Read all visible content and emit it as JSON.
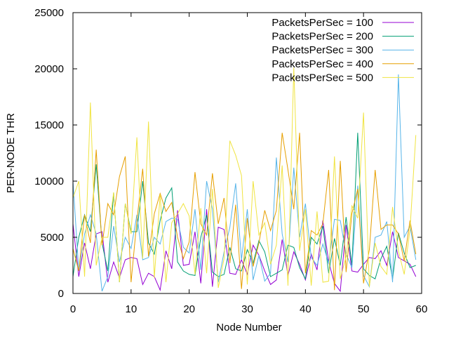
{
  "chart_data": {
    "type": "line",
    "xlabel": "Node Number",
    "ylabel": "PER-NODE THR",
    "xlim": [
      0,
      60
    ],
    "ylim": [
      0,
      25000
    ],
    "xticks": [
      0,
      10,
      20,
      30,
      40,
      50,
      60
    ],
    "yticks": [
      0,
      5000,
      10000,
      15000,
      20000,
      25000
    ],
    "grid": false,
    "legend_position": "top-right",
    "x": [
      0,
      1,
      2,
      3,
      4,
      5,
      6,
      7,
      8,
      9,
      10,
      11,
      12,
      13,
      14,
      15,
      16,
      17,
      18,
      19,
      20,
      21,
      22,
      23,
      24,
      25,
      26,
      27,
      28,
      29,
      30,
      31,
      32,
      33,
      34,
      35,
      36,
      37,
      38,
      39,
      40,
      41,
      42,
      43,
      44,
      45,
      46,
      47,
      48,
      49,
      50,
      51,
      52,
      53,
      54,
      55,
      56,
      57,
      58,
      59
    ],
    "series": [
      {
        "name": "PacketsPerSec = 100",
        "color": "#9400d3",
        "values": [
          6200,
          1500,
          4500,
          2200,
          5300,
          5500,
          1000,
          2800,
          1400,
          3000,
          3200,
          3100,
          800,
          1800,
          1500,
          300,
          3800,
          2200,
          7400,
          2500,
          2600,
          5500,
          900,
          7500,
          600,
          5900,
          5700,
          1800,
          1700,
          3000,
          1700,
          4300,
          3400,
          2000,
          800,
          1200,
          4800,
          1600,
          3700,
          2600,
          1200,
          3500,
          2100,
          6500,
          2800,
          900,
          200,
          6100,
          2000,
          1900,
          2600,
          3200,
          3100,
          3800,
          2500,
          5500,
          3200,
          2900,
          2600,
          1500
        ]
      },
      {
        "name": "PacketsPerSec = 200",
        "color": "#009e73",
        "values": [
          1500,
          5000,
          7000,
          5500,
          11500,
          4500,
          2000,
          9000,
          1000,
          8000,
          5500,
          5500,
          10000,
          4500,
          3500,
          6500,
          8500,
          9400,
          2800,
          2000,
          1700,
          1600,
          5000,
          7000,
          1900,
          1500,
          1700,
          4100,
          2200,
          2000,
          3900,
          2700,
          4700,
          3700,
          1500,
          1800,
          2100,
          4300,
          4100,
          2300,
          1300,
          5000,
          4400,
          6000,
          1800,
          4900,
          2500,
          6800,
          2500,
          14300,
          2200,
          1600,
          1300,
          3100,
          4200,
          1300,
          5400,
          3600,
          2300,
          2500
        ]
      },
      {
        "name": "PacketsPerSec = 300",
        "color": "#56b4e9",
        "values": [
          10000,
          2000,
          5300,
          7000,
          5300,
          200,
          1500,
          6000,
          2800,
          5000,
          4000,
          7000,
          3000,
          3200,
          5000,
          4400,
          6400,
          6700,
          6600,
          4100,
          3600,
          7500,
          2100,
          10000,
          7500,
          1000,
          3700,
          5900,
          9800,
          3000,
          7500,
          1200,
          3400,
          1100,
          1800,
          12100,
          5300,
          2800,
          11200,
          5000,
          8000,
          3200,
          2500,
          4400,
          2700,
          6600,
          6500,
          3500,
          2300,
          9600,
          1600,
          600,
          5000,
          5200,
          6400,
          1000,
          19500,
          5000,
          6000,
          3000
        ]
      },
      {
        "name": "PacketsPerSec = 400",
        "color": "#e69f00",
        "values": [
          4000,
          2000,
          7000,
          4500,
          12800,
          4300,
          8000,
          7000,
          10400,
          12200,
          1000,
          6500,
          11100,
          3300,
          7100,
          8900,
          7300,
          8100,
          5000,
          3100,
          4600,
          10800,
          6200,
          5200,
          10700,
          6200,
          8500,
          2700,
          7900,
          400,
          6700,
          2400,
          4500,
          7400,
          5600,
          7400,
          14300,
          11000,
          7500,
          14300,
          1800,
          5600,
          5200,
          6200,
          11000,
          300,
          11800,
          1900,
          7100,
          9300,
          900,
          3900,
          11000,
          5700,
          6100,
          6100,
          5300,
          2900,
          6500,
          3500
        ]
      },
      {
        "name": "PacketsPerSec = 500",
        "color": "#f0e442",
        "values": [
          8500,
          10000,
          1500,
          17000,
          2500,
          5000,
          5000,
          9000,
          1000,
          8000,
          5300,
          13900,
          3100,
          15300,
          1400,
          8800,
          1000,
          6300,
          7100,
          8000,
          6900,
          1700,
          7600,
          1800,
          9300,
          500,
          3100,
          13600,
          12300,
          10500,
          800,
          10000,
          5200,
          6300,
          2600,
          4300,
          11400,
          700,
          20100,
          3800,
          7500,
          700,
          7300,
          1000,
          1100,
          12200,
          1300,
          3300,
          7800,
          6700,
          16100,
          600,
          4500,
          2400,
          1700,
          7700,
          3800,
          1700,
          5700,
          14100
        ]
      }
    ]
  }
}
